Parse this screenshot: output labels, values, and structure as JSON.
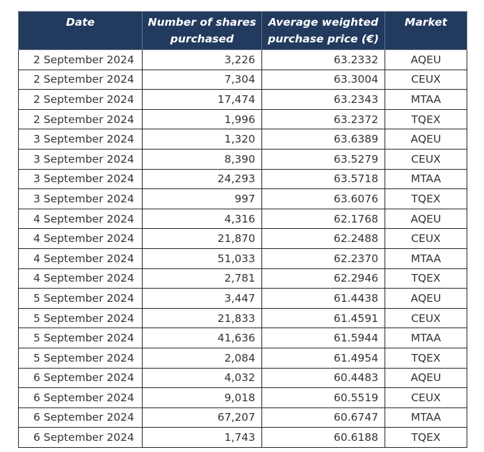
{
  "table": {
    "headers": [
      "Date",
      "Number of shares purchased",
      "Average weighted purchase price (€)",
      "Market"
    ],
    "header_lines": [
      [
        "Date"
      ],
      [
        "Number of shares",
        "purchased"
      ],
      [
        "Average weighted",
        "purchase price (€)"
      ],
      [
        "Market"
      ]
    ],
    "header_bg": "#223a5e",
    "rows": [
      [
        "2 September 2024",
        "3,226",
        "63.2332",
        "AQEU"
      ],
      [
        "2 September 2024",
        "7,304",
        "63.3004",
        "CEUX"
      ],
      [
        "2 September 2024",
        "17,474",
        "63.2343",
        "MTAA"
      ],
      [
        "2 September 2024",
        "1,996",
        "63.2372",
        "TQEX"
      ],
      [
        "3 September 2024",
        "1,320",
        "63.6389",
        "AQEU"
      ],
      [
        "3 September 2024",
        "8,390",
        "63.5279",
        "CEUX"
      ],
      [
        "3 September 2024",
        "24,293",
        "63.5718",
        "MTAA"
      ],
      [
        "3 September 2024",
        "997",
        "63.6076",
        "TQEX"
      ],
      [
        "4 September 2024",
        "4,316",
        "62.1768",
        "AQEU"
      ],
      [
        "4 September 2024",
        "21,870",
        "62.2488",
        "CEUX"
      ],
      [
        "4 September 2024",
        "51,033",
        "62.2370",
        "MTAA"
      ],
      [
        "4 September 2024",
        "2,781",
        "62.2946",
        "TQEX"
      ],
      [
        "5 September 2024",
        "3,447",
        "61.4438",
        "AQEU"
      ],
      [
        "5 September 2024",
        "21,833",
        "61.4591",
        "CEUX"
      ],
      [
        "5 September 2024",
        "41,636",
        "61.5944",
        "MTAA"
      ],
      [
        "5 September 2024",
        "2,084",
        "61.4954",
        "TQEX"
      ],
      [
        "6 September 2024",
        "4,032",
        "60.4483",
        "AQEU"
      ],
      [
        "6 September 2024",
        "9,018",
        "60.5519",
        "CEUX"
      ],
      [
        "6 September 2024",
        "67,207",
        "60.6747",
        "MTAA"
      ],
      [
        "6 September 2024",
        "1,743",
        "60.6188",
        "TQEX"
      ]
    ]
  }
}
